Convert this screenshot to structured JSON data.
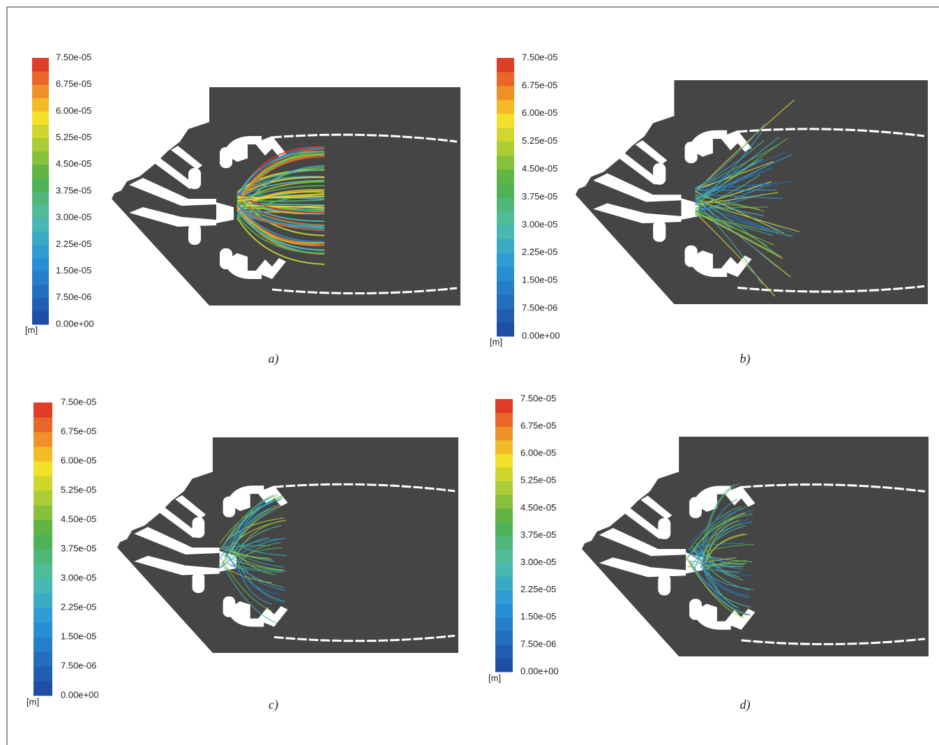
{
  "panels": [
    {
      "caption": "a)",
      "unit": "[m]",
      "colorbar_labels": [
        "7.50e-05",
        "6.75e-05",
        "6.00e-05",
        "5.25e-05",
        "4.50e-05",
        "3.75e-05",
        "3.00e-05",
        "2.25e-05",
        "1.50e-05",
        "7.50e-06",
        "0.00e+00"
      ]
    },
    {
      "caption": "b)",
      "unit": "[m]",
      "colorbar_labels": [
        "7.50e-05",
        "6.75e-05",
        "6.00e-05",
        "5.25e-05",
        "4.50e-05",
        "3.75e-05",
        "3.00e-05",
        "2.25e-05",
        "1.50e-05",
        "7.50e-06",
        "0.00e+00"
      ]
    },
    {
      "caption": "c)",
      "unit": "[m]",
      "colorbar_labels": [
        "7.50e-05",
        "6.75e-05",
        "6.00e-05",
        "5.25e-05",
        "4.50e-05",
        "3.75e-05",
        "3.00e-05",
        "2.25e-05",
        "1.50e-05",
        "7.50e-06",
        "0.00e+00"
      ]
    },
    {
      "caption": "d)",
      "unit": "[m]",
      "colorbar_labels": [
        "7.50e-05",
        "6.75e-05",
        "6.00e-05",
        "5.25e-05",
        "4.50e-05",
        "3.75e-05",
        "3.00e-05",
        "2.25e-05",
        "1.50e-05",
        "7.50e-06",
        "0.00e+00"
      ]
    }
  ]
}
